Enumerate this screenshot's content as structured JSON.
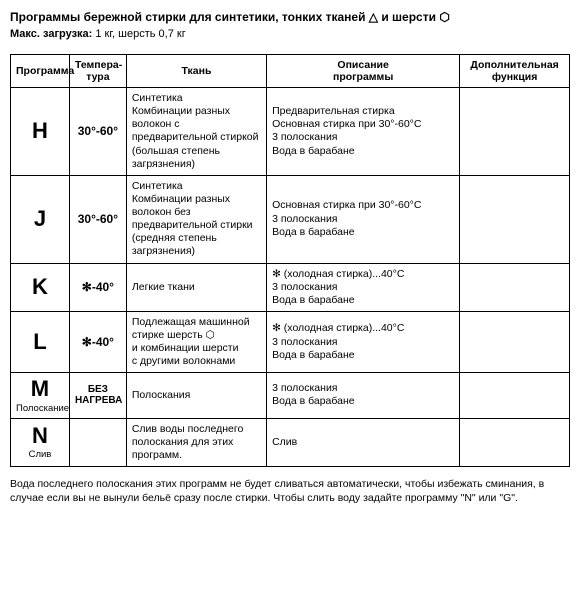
{
  "title": "Программы бережной стирки для синтетики, тонких тканей △ и шерсти ⬡",
  "subtitle_label": "Макс. загрузка:",
  "subtitle_value": " 1 кг, шерсть 0,7 кг",
  "headers": {
    "c1": "Программа",
    "c2": "Темпера-\nтура",
    "c3": "Ткань",
    "c4": "Описание\nпрограммы",
    "c5": "Дополнительная\nфункция"
  },
  "rows": [
    {
      "code": "H",
      "sub": "",
      "temp": "30°-60°",
      "temp_small": false,
      "fabric": "Синтетика\nКомбинации разных\nволокон с\nпредварительной стиркой\n(большая степень\nзагрязнения)",
      "desc": "Предварительная стирка\nОсновная стирка при 30°-60°С\n3 полоскания\nВода в барабане",
      "extra": ""
    },
    {
      "code": "J",
      "sub": "",
      "temp": "30°-60°",
      "temp_small": false,
      "fabric": "Синтетика\nКомбинации разных\nволокон без\nпредварительной стирки\n(средняя степень\nзагрязнения)",
      "desc": "Основная стирка при 30°-60°С\n3 полоскания\nВода в барабане",
      "extra": ""
    },
    {
      "code": "K",
      "sub": "",
      "temp": "✻-40°",
      "temp_small": false,
      "fabric": "Легкие ткани",
      "desc": "✻ (холодная стирка)...40°С\n3 полоскания\nВода в барабане",
      "extra": ""
    },
    {
      "code": "L",
      "sub": "",
      "temp": "✻-40°",
      "temp_small": false,
      "fabric": "Подлежащая машинной\nстирке шерсть ⬡\nи комбинации шерсти\nс другими волокнами",
      "desc": "✻ (холодная стирка)...40°С\n3 полоскания\nВода в барабане",
      "extra": ""
    },
    {
      "code": "M",
      "sub": "Полоскание",
      "temp": "БЕЗ\nНАГРЕВА",
      "temp_small": true,
      "fabric": "Полоскания",
      "desc": "3 полоскания\nВода в барабане",
      "extra": ""
    },
    {
      "code": "N",
      "sub": "Слив",
      "temp": "",
      "temp_small": false,
      "fabric": "Слив воды последнего\nполоскания для этих\nпрограмм.",
      "desc": "Слив",
      "extra": ""
    }
  ],
  "footnote": "Вода последнего полоскания этих программ не будет сливаться автоматически, чтобы избежать сминания, в случае если вы не вынули бельё сразу после стирки. Чтобы слить воду задайте программу \"N\" или \"G\"."
}
